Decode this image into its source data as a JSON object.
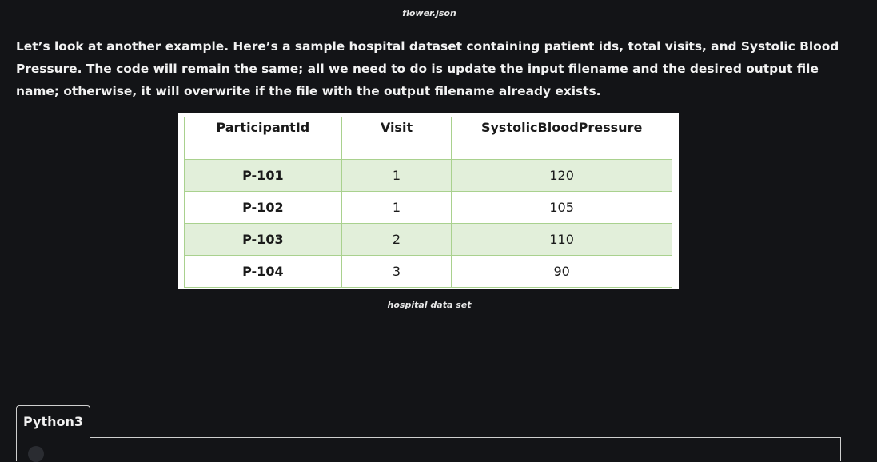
{
  "captions": {
    "top": "flower.json",
    "bottom": "hospital data set"
  },
  "paragraph": "Let’s look at another example. Here’s a sample hospital dataset containing patient ids, total visits, and Systolic Blood Pressure. The code will remain the same; all we need to do is update the input filename and the desired output file name; otherwise, it will overwrite if the file with the output filename already exists.",
  "table": {
    "headers": [
      "ParticipantId",
      "Visit",
      "SystolicBloodPressure"
    ],
    "rows": [
      [
        "P-101",
        "1",
        "120"
      ],
      [
        "P-102",
        "1",
        "105"
      ],
      [
        "P-103",
        "2",
        "110"
      ],
      [
        "P-104",
        "3",
        "90"
      ]
    ]
  },
  "code_tabs": [
    {
      "label": "Python3"
    }
  ],
  "colors": {
    "background": "#131417",
    "table_border": "#a9d18e",
    "row_shade": "#e2efda"
  }
}
